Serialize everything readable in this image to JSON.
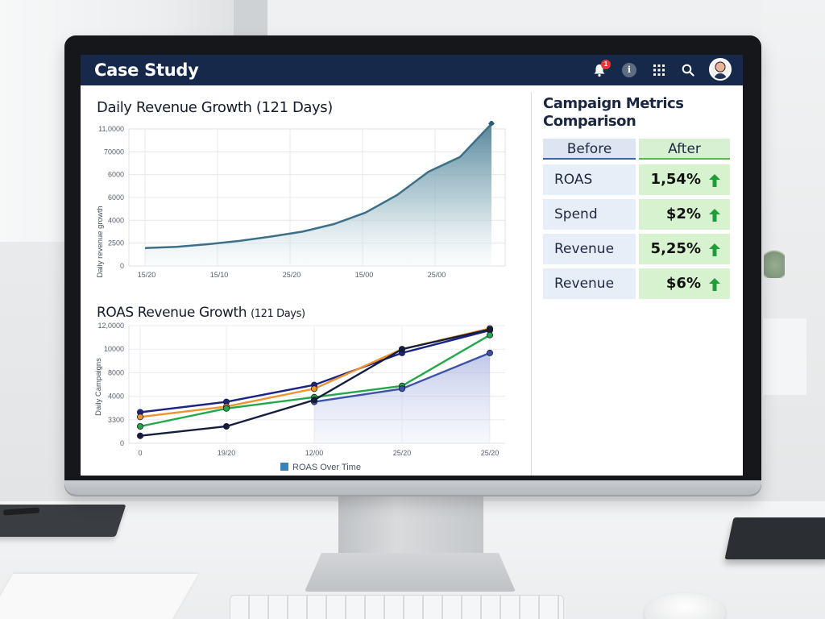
{
  "app": {
    "title": "Case Study",
    "notification_count": "1",
    "info_symbol": "i"
  },
  "icons": [
    "bell-icon",
    "info-icon",
    "apps-grid-icon",
    "search-icon",
    "avatar"
  ],
  "colors": {
    "header_bg": "#16294a",
    "area_series": "#3d7088",
    "line_navy": "#1a2484",
    "line_orange": "#f0922e",
    "line_green": "#22a84a",
    "line_blue": "#3d52a8",
    "line_dark": "#141e3c",
    "positive": "#1f9d3a"
  },
  "chart_data": [
    {
      "type": "area",
      "title": "Daily Revenue Growth (121 Days)",
      "ylabel": "Daily revenue growth",
      "xlabel": "",
      "y_ticks": [
        "11,0000",
        "70000",
        "6000",
        "6000",
        "4000",
        "2500",
        "0"
      ],
      "x_ticks": [
        "15/20",
        "15/10",
        "25/20",
        "15/00",
        "25/00"
      ],
      "grid": true,
      "values": [
        3.3,
        3.5,
        4.0,
        4.6,
        5.4,
        6.3,
        7.7,
        9.8,
        13.0,
        17.3,
        20.0,
        26.1
      ]
    },
    {
      "type": "line",
      "title": "ROAS Revenue Growth",
      "title_suffix": "(121 Days)",
      "ylabel": "Daily Campaigns",
      "y_ticks": [
        "12,0000",
        "10000",
        "8000",
        "4000",
        "3300",
        "0"
      ],
      "x_ticks": [
        "0",
        "19/20",
        "12/00",
        "25/20",
        "25/20"
      ],
      "legend": "ROAS Over Time",
      "legend_position": "bottom-center",
      "grid": true,
      "series": [
        {
          "values": [
            3300,
            4400,
            6200,
            9600,
            12000
          ]
        },
        {
          "values": [
            2800,
            3900,
            5800,
            10000,
            12200
          ]
        },
        {
          "values": [
            1800,
            3700,
            4900,
            6100,
            11500
          ]
        },
        {
          "values": [
            null,
            null,
            4400,
            5800,
            9600
          ]
        },
        {
          "values": [
            800,
            1800,
            4600,
            10000,
            12100
          ]
        }
      ]
    }
  ],
  "metrics": {
    "title": "Campaign Metrics Comparison",
    "before_label": "Before",
    "after_label": "After",
    "rows": [
      {
        "label": "ROAS",
        "value": "1,54%"
      },
      {
        "label": "Spend",
        "value": "$2%"
      },
      {
        "label": "Revenue",
        "value": "5,25%"
      },
      {
        "label": "Revenue",
        "value": "$6%"
      }
    ]
  }
}
